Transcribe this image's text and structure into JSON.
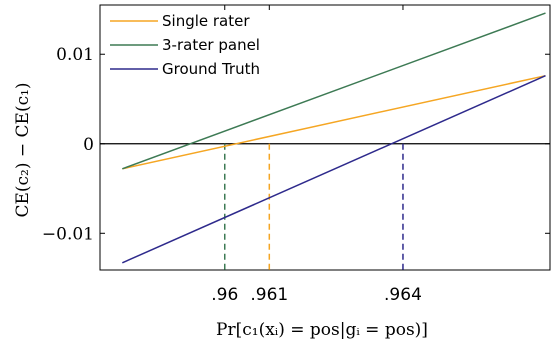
{
  "chart_data": {
    "type": "line",
    "xlabel": "Pr[c₁(xᵢ) = pos|gᵢ = pos)]",
    "ylabel": "CE(c₂) − CE(c₁)",
    "xlim": [
      0.9572,
      0.9673
    ],
    "ylim": [
      -0.0141,
      0.0155
    ],
    "y_ticks": [
      {
        "value": 0.01,
        "label": "0.01"
      },
      {
        "value": 0,
        "label": "0"
      },
      {
        "value": -0.01,
        "label": "−0.01"
      }
    ],
    "x_ticks": [
      {
        "value": 0.96,
        "label": ".96"
      },
      {
        "value": 0.961,
        "label": ".961"
      },
      {
        "value": 0.964,
        "label": ".964"
      }
    ],
    "zero_line": true,
    "legend_position": "top-left",
    "series": [
      {
        "name": "Single rater",
        "color": "#f5a623",
        "x": [
          0.9577,
          0.9672
        ],
        "y": [
          -0.0028,
          0.0076
        ],
        "crossing_x": 0.961
      },
      {
        "name": "3-rater panel",
        "color": "#3d7a54",
        "x": [
          0.9577,
          0.9672
        ],
        "y": [
          -0.0028,
          0.0146
        ],
        "crossing_x": 0.96
      },
      {
        "name": "Ground Truth",
        "color": "#2e2a8c",
        "x": [
          0.9577,
          0.9672
        ],
        "y": [
          -0.0133,
          0.0076
        ],
        "crossing_x": 0.964
      }
    ]
  }
}
